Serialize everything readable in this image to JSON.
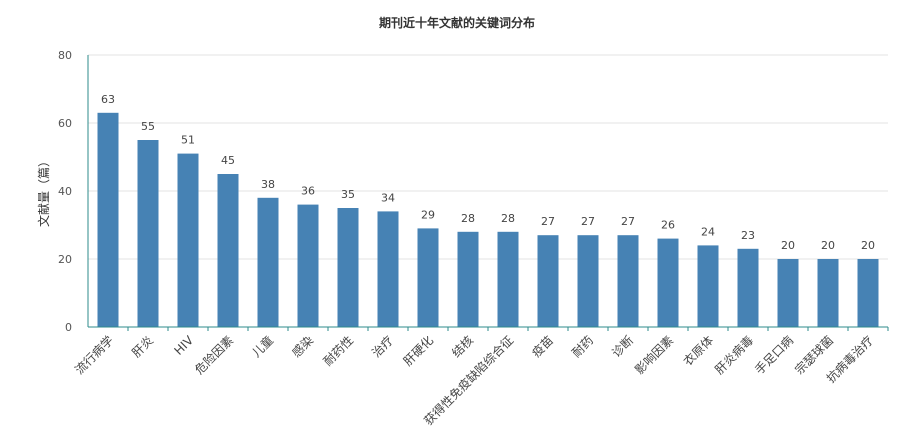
{
  "chart_data": {
    "type": "bar",
    "title": "期刊近十年文献的关键词分布",
    "xlabel": "",
    "ylabel": "文献量（篇）",
    "ylim": [
      0,
      80
    ],
    "yticks": [
      0,
      20,
      40,
      60,
      80
    ],
    "grid": true,
    "legend": "none",
    "bar_color": "#4682b4",
    "categories": [
      "流行病学",
      "肝炎",
      "HIV",
      "危险因素",
      "儿童",
      "感染",
      "耐药性",
      "治疗",
      "肝硬化",
      "结核",
      "获得性免疫缺陷综合征",
      "疫苗",
      "耐药",
      "诊断",
      "影响因素",
      "衣原体",
      "肝炎病毒",
      "手足口病",
      "宗瑟球菌",
      "抗病毒治疗"
    ],
    "values": [
      63,
      55,
      51,
      45,
      38,
      36,
      35,
      34,
      29,
      28,
      28,
      27,
      27,
      27,
      26,
      24,
      23,
      20,
      20,
      20
    ]
  }
}
